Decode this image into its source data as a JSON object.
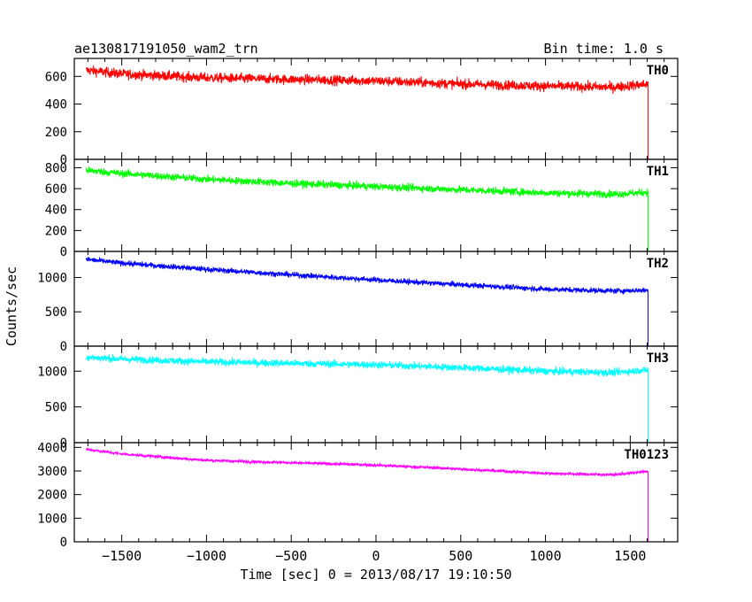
{
  "header": {
    "title": "ae130817191050_wam2_trn",
    "bin_time": "Bin time: 1.0 s"
  },
  "chart_data": {
    "type": "line",
    "ylabel": "Counts/sec",
    "xlabel": "Time [sec] 0 = 2013/08/17 19:10:50",
    "xlim": [
      -1780,
      1780
    ],
    "x_ticks": [
      -1500,
      -1000,
      -500,
      0,
      500,
      1000,
      1500
    ],
    "data_range": [
      -1710,
      1605
    ],
    "drop_end": 1710,
    "grid": false,
    "panels": [
      {
        "name": "TH0",
        "color": "#ff0000",
        "ylim": [
          0,
          730
        ],
        "y_ticks": [
          0,
          200,
          400,
          600
        ],
        "trend": [
          [
            -1710,
            645
          ],
          [
            -1500,
            618
          ],
          [
            -1000,
            590
          ],
          [
            -500,
            578
          ],
          [
            0,
            568
          ],
          [
            500,
            545
          ],
          [
            1000,
            530
          ],
          [
            1400,
            522
          ],
          [
            1605,
            545
          ]
        ],
        "noise": 35
      },
      {
        "name": "TH1",
        "color": "#00ff00",
        "ylim": [
          0,
          880
        ],
        "y_ticks": [
          0,
          200,
          400,
          600,
          800
        ],
        "trend": [
          [
            -1710,
            775
          ],
          [
            -1500,
            745
          ],
          [
            -1000,
            690
          ],
          [
            -500,
            650
          ],
          [
            0,
            620
          ],
          [
            500,
            590
          ],
          [
            1000,
            560
          ],
          [
            1400,
            548
          ],
          [
            1605,
            565
          ]
        ],
        "noise": 35
      },
      {
        "name": "TH2",
        "color": "#0000ff",
        "ylim": [
          0,
          1380
        ],
        "y_ticks": [
          0,
          500,
          1000
        ],
        "trend": [
          [
            -1710,
            1265
          ],
          [
            -1500,
            1210
          ],
          [
            -1000,
            1120
          ],
          [
            -500,
            1040
          ],
          [
            0,
            965
          ],
          [
            500,
            895
          ],
          [
            1000,
            830
          ],
          [
            1400,
            805
          ],
          [
            1605,
            815
          ]
        ],
        "noise": 38
      },
      {
        "name": "TH3",
        "color": "#00ffff",
        "ylim": [
          0,
          1350
        ],
        "y_ticks": [
          0,
          500,
          1000
        ],
        "trend": [
          [
            -1710,
            1195
          ],
          [
            -1500,
            1170
          ],
          [
            -1000,
            1130
          ],
          [
            -500,
            1110
          ],
          [
            0,
            1090
          ],
          [
            500,
            1050
          ],
          [
            1000,
            1000
          ],
          [
            1400,
            980
          ],
          [
            1605,
            1020
          ]
        ],
        "noise": 50
      },
      {
        "name": "TH0123",
        "color": "#ff00ff",
        "ylim": [
          0,
          4200
        ],
        "y_ticks": [
          0,
          1000,
          2000,
          3000,
          4000
        ],
        "trend": [
          [
            -1710,
            3920
          ],
          [
            -1500,
            3720
          ],
          [
            -1000,
            3450
          ],
          [
            -500,
            3350
          ],
          [
            0,
            3250
          ],
          [
            500,
            3080
          ],
          [
            1000,
            2900
          ],
          [
            1400,
            2840
          ],
          [
            1605,
            2980
          ]
        ],
        "noise": 60
      }
    ]
  }
}
